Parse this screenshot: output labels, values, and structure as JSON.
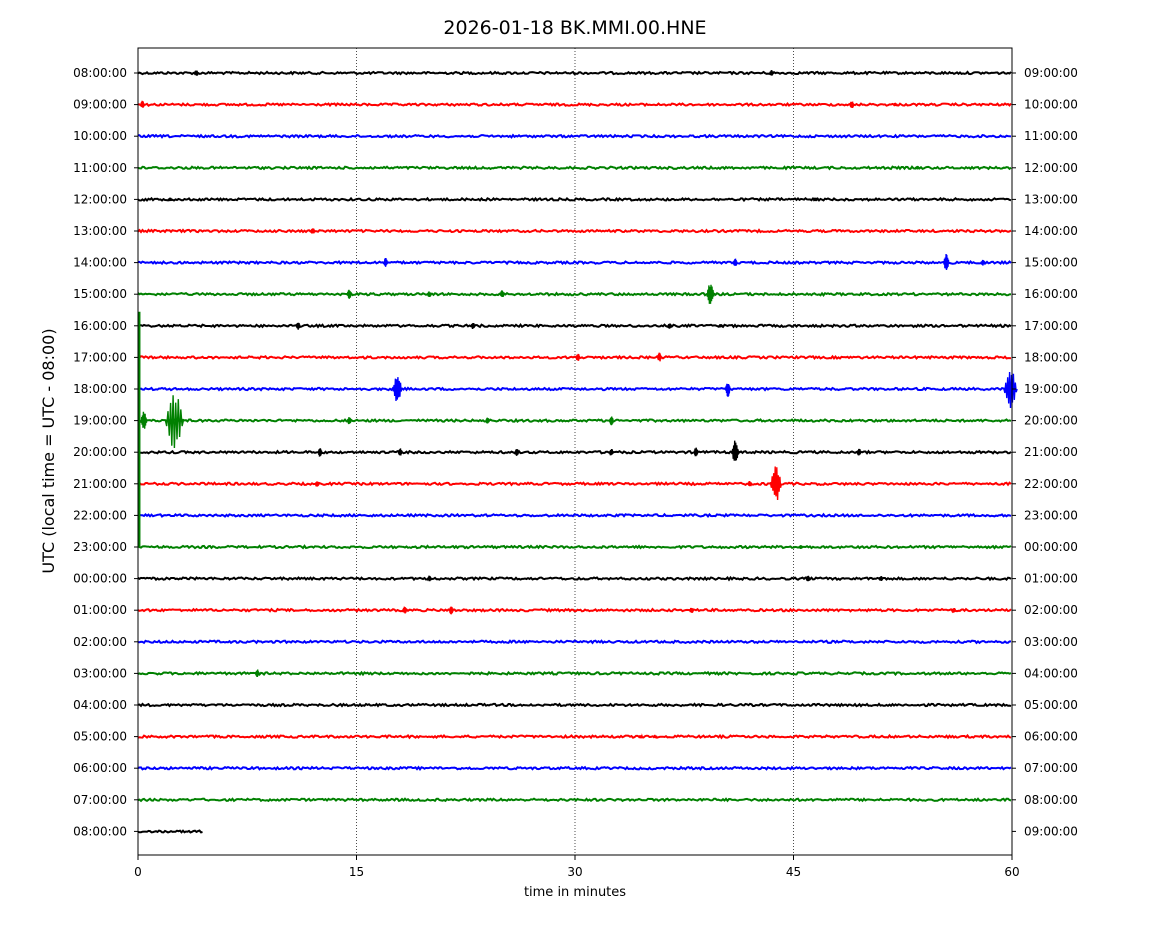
{
  "chart_data": {
    "type": "line",
    "title": "2026-01-18 BK.MMI.00.HNE",
    "xlabel": "time in minutes",
    "ylabel": "UTC (local time = UTC - 08:00)",
    "xlim": [
      0,
      60
    ],
    "x_ticks": [
      0,
      15,
      30,
      45,
      60
    ],
    "x_tick_labels": [
      "0",
      "15",
      "30",
      "45",
      "60"
    ],
    "vertical_grid": "dotted at 15, 30, 45",
    "colors": [
      "#000000",
      "#ff0000",
      "#0000ff",
      "#008000"
    ],
    "series": [
      {
        "left_label": "08:00:00",
        "right_label": "09:00:00",
        "color": "#000000",
        "end_minute": 60,
        "events": [
          {
            "t": 4,
            "amp": 3
          },
          {
            "t": 43.5,
            "amp": 3
          }
        ]
      },
      {
        "left_label": "09:00:00",
        "right_label": "10:00:00",
        "color": "#ff0000",
        "end_minute": 60,
        "events": [
          {
            "t": 0.3,
            "amp": 4
          },
          {
            "t": 49,
            "amp": 4
          },
          {
            "t": 52,
            "amp": 2
          }
        ]
      },
      {
        "left_label": "10:00:00",
        "right_label": "11:00:00",
        "color": "#0000ff",
        "end_minute": 60,
        "events": []
      },
      {
        "left_label": "11:00:00",
        "right_label": "12:00:00",
        "color": "#008000",
        "end_minute": 60,
        "events": [
          {
            "t": 53.5,
            "amp": 2
          }
        ]
      },
      {
        "left_label": "12:00:00",
        "right_label": "13:00:00",
        "color": "#000000",
        "end_minute": 60,
        "events": [
          {
            "t": 2.2,
            "amp": 2
          },
          {
            "t": 46.5,
            "amp": 2
          }
        ]
      },
      {
        "left_label": "13:00:00",
        "right_label": "14:00:00",
        "color": "#ff0000",
        "end_minute": 60,
        "events": [
          {
            "t": 12,
            "amp": 3
          }
        ]
      },
      {
        "left_label": "14:00:00",
        "right_label": "15:00:00",
        "color": "#0000ff",
        "end_minute": 60,
        "events": [
          {
            "t": 17,
            "amp": 5
          },
          {
            "t": 41,
            "amp": 4
          },
          {
            "t": 55.5,
            "amp": 9
          },
          {
            "t": 58,
            "amp": 3
          }
        ]
      },
      {
        "left_label": "15:00:00",
        "right_label": "16:00:00",
        "color": "#008000",
        "end_minute": 60,
        "events": [
          {
            "t": 14.5,
            "amp": 5
          },
          {
            "t": 20,
            "amp": 3
          },
          {
            "t": 25,
            "amp": 4
          },
          {
            "t": 39.3,
            "amp": 12
          }
        ]
      },
      {
        "left_label": "16:00:00",
        "right_label": "17:00:00",
        "color": "#000000",
        "end_minute": 60,
        "events": [
          {
            "t": 11,
            "amp": 4
          },
          {
            "t": 23,
            "amp": 4
          },
          {
            "t": 36.5,
            "amp": 3
          },
          {
            "t": 40,
            "amp": 2
          }
        ]
      },
      {
        "left_label": "17:00:00",
        "right_label": "18:00:00",
        "color": "#ff0000",
        "end_minute": 60,
        "events": [
          {
            "t": 30.2,
            "amp": 4
          },
          {
            "t": 35.8,
            "amp": 5
          }
        ]
      },
      {
        "left_label": "18:00:00",
        "right_label": "19:00:00",
        "color": "#0000ff",
        "end_minute": 60,
        "events": [
          {
            "t": 17.8,
            "amp": 15
          },
          {
            "t": 40.5,
            "amp": 8
          },
          {
            "t": 59.9,
            "amp": 22
          }
        ]
      },
      {
        "left_label": "19:00:00",
        "right_label": "20:00:00",
        "color": "#008000",
        "end_minute": 60,
        "events": [
          {
            "t": 0.4,
            "amp": 10
          },
          {
            "t": 2.5,
            "amp": 30
          },
          {
            "t": 14.5,
            "amp": 4
          },
          {
            "t": 24,
            "amp": 3
          },
          {
            "t": 32.5,
            "amp": 5
          }
        ]
      },
      {
        "left_label": "20:00:00",
        "right_label": "21:00:00",
        "color": "#000000",
        "end_minute": 60,
        "events": [
          {
            "t": 12.5,
            "amp": 5
          },
          {
            "t": 18,
            "amp": 4
          },
          {
            "t": 26,
            "amp": 4
          },
          {
            "t": 32.5,
            "amp": 4
          },
          {
            "t": 38.3,
            "amp": 5
          },
          {
            "t": 41,
            "amp": 12
          },
          {
            "t": 49.5,
            "amp": 4
          }
        ]
      },
      {
        "left_label": "21:00:00",
        "right_label": "22:00:00",
        "color": "#ff0000",
        "end_minute": 60,
        "events": [
          {
            "t": 12.3,
            "amp": 3
          },
          {
            "t": 42,
            "amp": 3
          },
          {
            "t": 43.8,
            "amp": 18
          }
        ]
      },
      {
        "left_label": "22:00:00",
        "right_label": "23:00:00",
        "color": "#0000ff",
        "end_minute": 60,
        "events": []
      },
      {
        "left_label": "23:00:00",
        "right_label": "00:00:00",
        "color": "#008000",
        "end_minute": 60,
        "events": [
          {
            "t": 45.5,
            "amp": 2
          }
        ]
      },
      {
        "left_label": "00:00:00",
        "right_label": "01:00:00",
        "color": "#000000",
        "end_minute": 60,
        "events": [
          {
            "t": 20,
            "amp": 3
          },
          {
            "t": 46,
            "amp": 3
          },
          {
            "t": 51,
            "amp": 3
          }
        ]
      },
      {
        "left_label": "01:00:00",
        "right_label": "02:00:00",
        "color": "#ff0000",
        "end_minute": 60,
        "events": [
          {
            "t": 18.3,
            "amp": 4
          },
          {
            "t": 21.5,
            "amp": 5
          },
          {
            "t": 38,
            "amp": 3
          },
          {
            "t": 56,
            "amp": 3
          }
        ]
      },
      {
        "left_label": "02:00:00",
        "right_label": "03:00:00",
        "color": "#0000ff",
        "end_minute": 60,
        "events": []
      },
      {
        "left_label": "03:00:00",
        "right_label": "04:00:00",
        "color": "#008000",
        "end_minute": 60,
        "events": [
          {
            "t": 8.2,
            "amp": 4
          }
        ]
      },
      {
        "left_label": "04:00:00",
        "right_label": "05:00:00",
        "color": "#000000",
        "end_minute": 60,
        "events": []
      },
      {
        "left_label": "05:00:00",
        "right_label": "06:00:00",
        "color": "#ff0000",
        "end_minute": 60,
        "events": [
          {
            "t": 34.5,
            "amp": 2
          },
          {
            "t": 35.5,
            "amp": 2
          }
        ]
      },
      {
        "left_label": "06:00:00",
        "right_label": "07:00:00",
        "color": "#0000ff",
        "end_minute": 60,
        "events": []
      },
      {
        "left_label": "07:00:00",
        "right_label": "08:00:00",
        "color": "#008000",
        "end_minute": 60,
        "events": []
      },
      {
        "left_label": "08:00:00",
        "right_label": "09:00:00",
        "color": "#000000",
        "end_minute": 4.5,
        "events": []
      }
    ],
    "large_transient": {
      "t": 0.1,
      "from_row": "16:00:00",
      "to_row": "23:00:00",
      "color": "#008000"
    }
  }
}
